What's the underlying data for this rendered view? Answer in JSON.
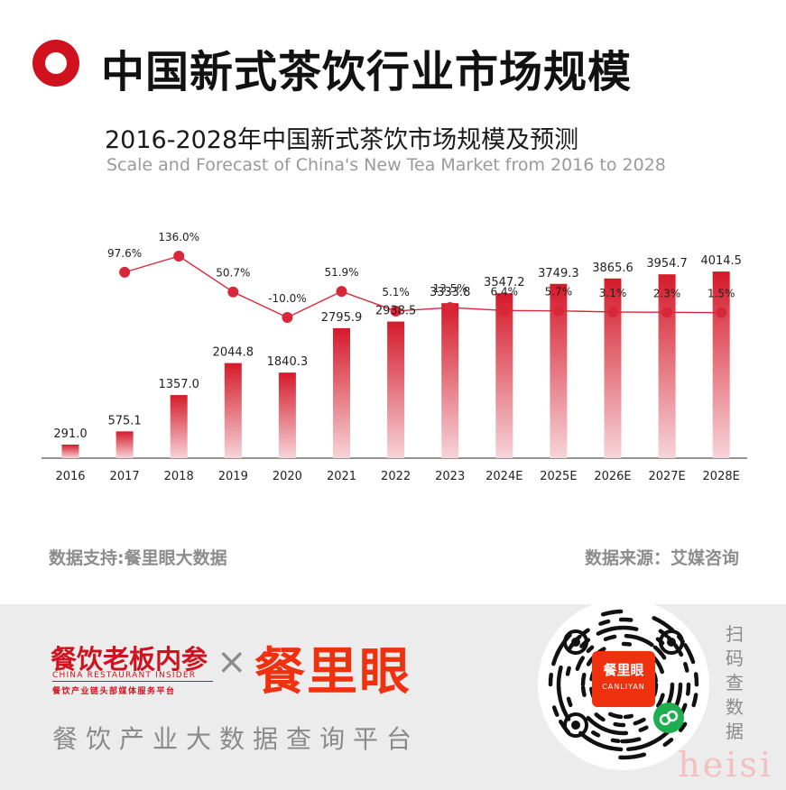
{
  "header": {
    "title": "中国新式茶饮行业市场规模"
  },
  "colors": {
    "accent": "#d0121f",
    "bar_top": "#d51a2a",
    "bar_bottom": "#f6d4d8",
    "line": "#d9273a",
    "brand_orange": "#f0310f"
  },
  "chart_data": {
    "type": "bar",
    "title": "2016-2028年中国新式茶饮市场规模及预测",
    "subtitle": "Scale and Forecast of China's New Tea Market from 2016 to 2028",
    "categories": [
      "2016",
      "2017",
      "2018",
      "2019",
      "2020",
      "2021",
      "2022",
      "2023",
      "2024E",
      "2025E",
      "2026E",
      "2027E",
      "2028E"
    ],
    "series": [
      {
        "values": [
          291.0,
          575.1,
          1357.0,
          2044.8,
          1840.3,
          2795.9,
          2938.5,
          3333.8,
          3547.2,
          3749.3,
          3865.6,
          3954.7,
          4014.5
        ]
      },
      {
        "type": "line",
        "values": [
          null,
          97.6,
          136.0,
          50.7,
          -10.0,
          51.9,
          5.1,
          13.5,
          6.4,
          5.7,
          3.1,
          2.3,
          1.5
        ]
      }
    ],
    "value_labels": [
      "291.0",
      "575.1",
      "1357.0",
      "2044.8",
      "1840.3",
      "2795.9",
      "2938.5",
      "3333.8",
      "3547.2",
      "3749.3",
      "3865.6",
      "3954.7",
      "4014.5"
    ],
    "growth_labels": [
      "",
      "97.6%",
      "136.0%",
      "50.7%",
      "-10.0%",
      "51.9%",
      "5.1%",
      "13.5%",
      "6.4%",
      "5.7%",
      "3.1%",
      "2.3%",
      "1.5%"
    ],
    "ylim": [
      0,
      5200
    ],
    "grid": false
  },
  "sources": {
    "left": "数据支持:餐里眼大数据",
    "right": "数据来源：艾媒咨询"
  },
  "footer": {
    "brand_cn": "餐饮老板内参",
    "brand_en": "CHINA RESTAURANT INSIDER",
    "brand_sub": "餐饮产业链头部媒体服务平台",
    "cross": "×",
    "brand_main": "餐里眼",
    "platform": "餐饮产业大数据查询平台",
    "qr_center_cn": "餐里眼",
    "qr_center_en": "CANLIYAN",
    "scan_text": "扫码查数据"
  },
  "watermark": "heisi"
}
